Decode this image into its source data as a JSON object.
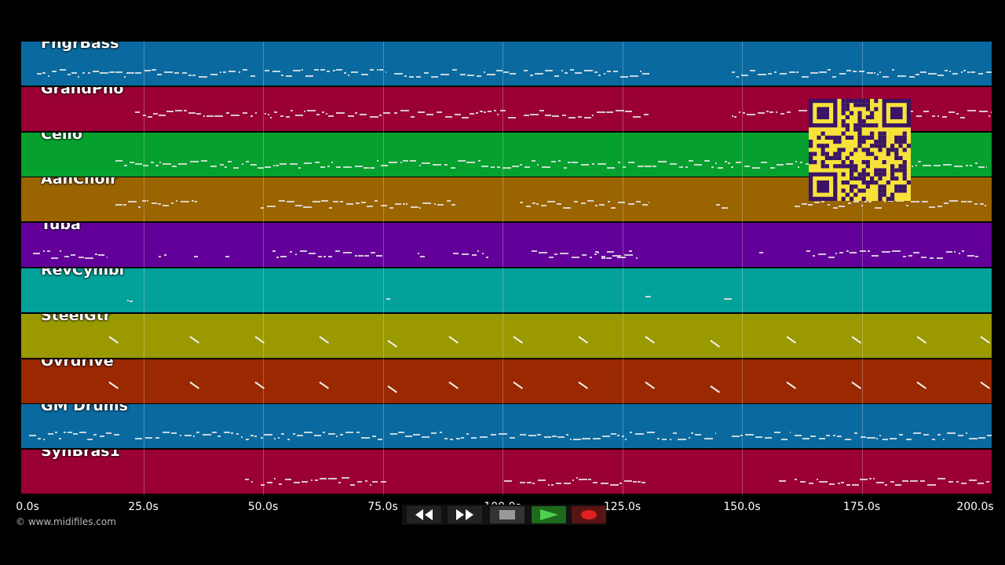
{
  "tracks": [
    {
      "name": "FngrBass",
      "color": "#0a6aa0"
    },
    {
      "name": "GrandPno",
      "color": "#9a0035"
    },
    {
      "name": "Cello",
      "color": "#05a02e"
    },
    {
      "name": "AahChoir",
      "color": "#9a6400"
    },
    {
      "name": "Tuba",
      "color": "#63009a"
    },
    {
      "name": "RevCymbl",
      "color": "#04a09a"
    },
    {
      "name": "SteelGtr",
      "color": "#9a9a00"
    },
    {
      "name": "Ovrdrive",
      "color": "#9a2800"
    },
    {
      "name": "GM Drums",
      "color": "#0a6aa0"
    },
    {
      "name": "SynBras1",
      "color": "#9a0035"
    }
  ],
  "timeline": {
    "ticks": [
      "0.0s",
      "25.0s",
      "50.0s",
      "75.0s",
      "100.0s",
      "125.0s",
      "150.0s",
      "175.0s",
      "200.0s"
    ]
  },
  "copyright": "© www.midifiles.com",
  "controls": {
    "rewind_icon": "rewind-icon",
    "fast_forward_icon": "fast-forward-icon",
    "stop_icon": "stop-icon",
    "play_icon": "play-icon",
    "record_icon": "record-icon"
  },
  "qr_icon": "qr-code-icon"
}
